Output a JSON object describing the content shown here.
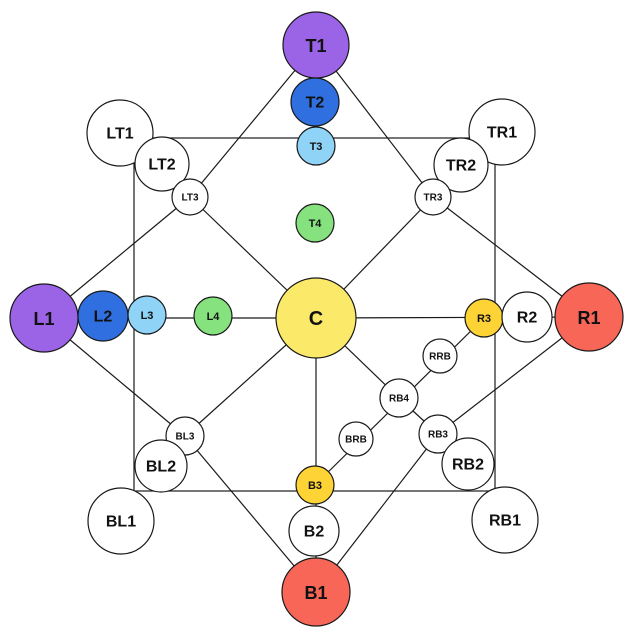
{
  "colors": {
    "white": "#ffffff",
    "purple": "#9b63e6",
    "blue": "#2f6fe0",
    "light_blue": "#8fd3f7",
    "green": "#86e27e",
    "yellow": "#fbe96a",
    "gold": "#fdd335",
    "red": "#f76656"
  },
  "nodes": [
    {
      "id": "T1",
      "label": "T1",
      "color": "purple"
    },
    {
      "id": "T2",
      "label": "T2",
      "color": "blue"
    },
    {
      "id": "T3",
      "label": "T3",
      "color": "light_blue"
    },
    {
      "id": "T4",
      "label": "T4",
      "color": "green"
    },
    {
      "id": "LT1",
      "label": "LT1",
      "color": "white"
    },
    {
      "id": "LT2",
      "label": "LT2",
      "color": "white"
    },
    {
      "id": "LT3",
      "label": "LT3",
      "color": "white"
    },
    {
      "id": "TR1",
      "label": "TR1",
      "color": "white"
    },
    {
      "id": "TR2",
      "label": "TR2",
      "color": "white"
    },
    {
      "id": "TR3",
      "label": "TR3",
      "color": "white"
    },
    {
      "id": "L1",
      "label": "L1",
      "color": "purple"
    },
    {
      "id": "L2",
      "label": "L2",
      "color": "blue"
    },
    {
      "id": "L3",
      "label": "L3",
      "color": "light_blue"
    },
    {
      "id": "L4",
      "label": "L4",
      "color": "green"
    },
    {
      "id": "C",
      "label": "C",
      "color": "yellow"
    },
    {
      "id": "R3",
      "label": "R3",
      "color": "gold"
    },
    {
      "id": "R2",
      "label": "R2",
      "color": "white"
    },
    {
      "id": "R1",
      "label": "R1",
      "color": "red"
    },
    {
      "id": "RRB",
      "label": "RRB",
      "color": "white"
    },
    {
      "id": "RB4",
      "label": "RB4",
      "color": "white"
    },
    {
      "id": "BRB",
      "label": "BRB",
      "color": "white"
    },
    {
      "id": "RB3",
      "label": "RB3",
      "color": "white"
    },
    {
      "id": "RB2",
      "label": "RB2",
      "color": "white"
    },
    {
      "id": "RB1",
      "label": "RB1",
      "color": "white"
    },
    {
      "id": "BL3",
      "label": "BL3",
      "color": "white"
    },
    {
      "id": "BL2",
      "label": "BL2",
      "color": "white"
    },
    {
      "id": "BL1",
      "label": "BL1",
      "color": "white"
    },
    {
      "id": "B3",
      "label": "B3",
      "color": "gold"
    },
    {
      "id": "B2",
      "label": "B2",
      "color": "white"
    },
    {
      "id": "B1",
      "label": "B1",
      "color": "red"
    }
  ],
  "edges": [
    [
      "T1",
      "LT3"
    ],
    [
      "T1",
      "TR3"
    ],
    [
      "T1",
      "T3"
    ],
    [
      "L1",
      "LT3"
    ],
    [
      "L1",
      "BL3"
    ],
    [
      "L1",
      "C"
    ],
    [
      "R1",
      "TR3"
    ],
    [
      "R1",
      "RB3"
    ],
    [
      "R1",
      "C"
    ],
    [
      "B1",
      "BL3"
    ],
    [
      "B1",
      "RB3"
    ],
    [
      "B1",
      "C"
    ],
    [
      "LT3",
      "C"
    ],
    [
      "TR3",
      "C"
    ],
    [
      "BL3",
      "C"
    ],
    [
      "RB4",
      "C"
    ],
    [
      "R3",
      "B3"
    ],
    [
      "RB4",
      "RB3"
    ]
  ]
}
